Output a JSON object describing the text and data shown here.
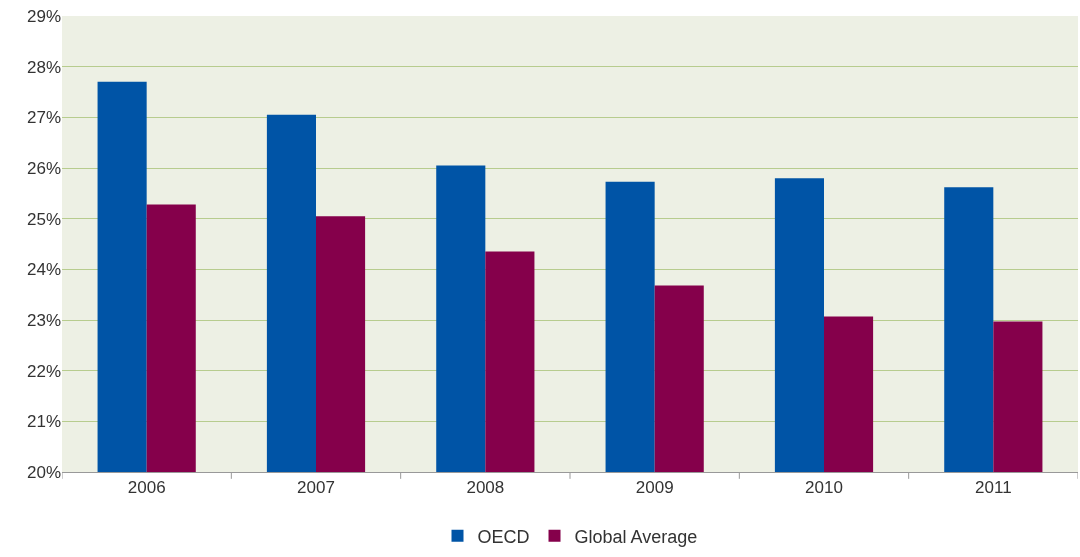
{
  "chart_data": {
    "type": "bar",
    "categories": [
      "2006",
      "2007",
      "2008",
      "2009",
      "2010",
      "2011"
    ],
    "series": [
      {
        "name": "OECD",
        "color": "#0054a6",
        "values": [
          27.7,
          27.05,
          26.05,
          25.73,
          25.8,
          25.62
        ]
      },
      {
        "name": "Global Average",
        "color": "#85004b",
        "values": [
          25.28,
          25.05,
          24.35,
          23.68,
          23.07,
          22.97
        ]
      }
    ],
    "ylim": [
      20,
      29
    ],
    "yticks": [
      {
        "value": 20,
        "label": "20%"
      },
      {
        "value": 21,
        "label": "21%"
      },
      {
        "value": 22,
        "label": "22%"
      },
      {
        "value": 23,
        "label": "23%"
      },
      {
        "value": 24,
        "label": "24%"
      },
      {
        "value": 25,
        "label": "25%"
      },
      {
        "value": 26,
        "label": "26%"
      },
      {
        "value": 27,
        "label": "27%"
      },
      {
        "value": 28,
        "label": "28%"
      },
      {
        "value": 29,
        "label": "29%"
      }
    ],
    "grid": "y",
    "legend": "bottom"
  }
}
